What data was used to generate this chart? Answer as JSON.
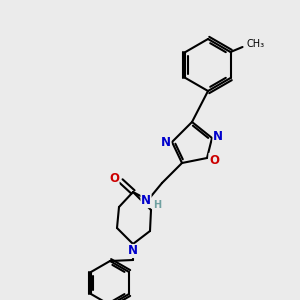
{
  "bg_color": "#ebebeb",
  "bond_color": "#000000",
  "bond_width": 1.5,
  "atom_colors": {
    "N": "#0000cc",
    "O": "#cc0000",
    "H": "#6fa0a0",
    "C": "#000000"
  },
  "font_size_atom": 8.5
}
